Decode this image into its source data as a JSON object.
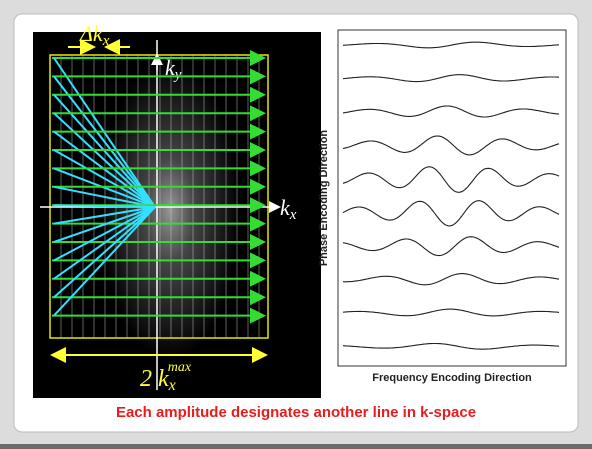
{
  "diagram": {
    "left_panel": {
      "delta_kx": {
        "base": "Δk",
        "sub": "x"
      },
      "ky": {
        "base": "k",
        "sub": "y"
      },
      "kx": {
        "base": "k",
        "sub": "x"
      },
      "width_label": {
        "base": "2 k",
        "sub": "x",
        "sup": "max"
      }
    },
    "right_panel": {
      "y_axis_label": "Phase Encoding Direction",
      "x_axis_label": "Frequency Encoding Direction"
    },
    "caption": "Each amplitude designates another line in k-space"
  }
}
